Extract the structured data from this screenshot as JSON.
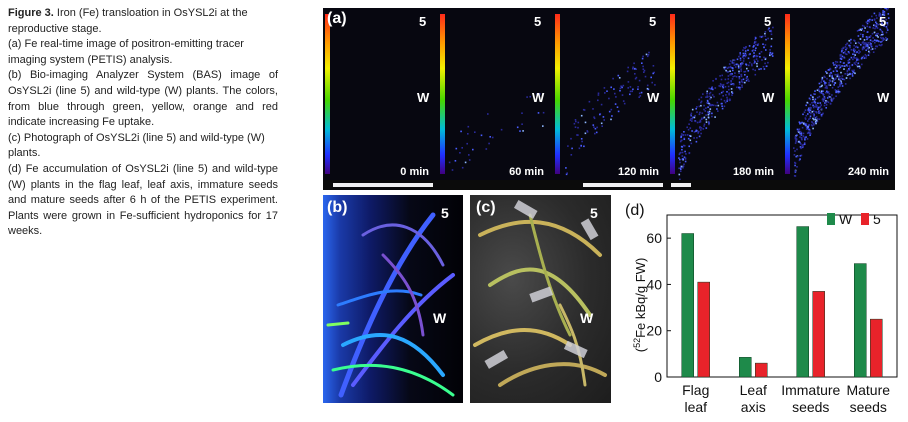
{
  "caption": {
    "title_bold": "Figure 3.",
    "title_rest": " Iron (Fe) transloation in OsYSL2i at the reproductive stage.",
    "item_a": "(a) Fe real-time image of positron-emitting tracer imaging system (PETIS) analysis.",
    "item_b": "(b) Bio-imaging Analyzer System (BAS) image of OsYSL2i (line 5) and wild-type (W) plants. The colors, from blue through green, yellow, orange and red indicate increasing Fe uptake.",
    "item_c": "(c) Photograph of OsYSL2i (line 5) and wild-type (W) plants.",
    "item_d": "(d) Fe accumulation of OsYSL2i (line 5) and wild-type (W) plants in the flag leaf, leaf axis, immature seeds and mature seeds after 6 h of the PETIS experiment. Plants were grown in Fe-sufficient hydroponics for 17 weeks."
  },
  "panel_a": {
    "label": "(a)",
    "frames": [
      {
        "time": "0 min",
        "top_label": "5",
        "mid_label": "W"
      },
      {
        "time": "60 min",
        "top_label": "5",
        "mid_label": "W"
      },
      {
        "time": "120 min",
        "top_label": "5",
        "mid_label": "W"
      },
      {
        "time": "180 min",
        "top_label": "5",
        "mid_label": "W"
      },
      {
        "time": "240 min",
        "top_label": "5",
        "mid_label": "W"
      }
    ]
  },
  "panel_b": {
    "label": "(b)",
    "top_label": "5",
    "mid_label": "W"
  },
  "panel_c": {
    "label": "(c)",
    "top_label": "5",
    "mid_label": "W"
  },
  "chart_data": {
    "type": "bar",
    "panel_label": "(d)",
    "title": "",
    "ylabel": "(52Fe kBq/g FW)",
    "ylabel_sup": "52",
    "ylabel_pre": "(",
    "ylabel_post": "Fe kBq/g FW)",
    "ylim": [
      0,
      70
    ],
    "yticks": [
      "0",
      "20",
      "40",
      "60"
    ],
    "categories": [
      [
        "Flag",
        "leaf"
      ],
      [
        "Leaf",
        "axis"
      ],
      [
        "Immature",
        "seeds"
      ],
      [
        "Mature",
        "seeds"
      ]
    ],
    "series": [
      {
        "name": "W",
        "color": "#1e8a4a",
        "values": [
          62,
          8.5,
          65,
          49
        ]
      },
      {
        "name": "5",
        "color": "#e8232a",
        "values": [
          41,
          6,
          37,
          25
        ]
      }
    ],
    "legend_position": "top-right",
    "grid": false
  }
}
